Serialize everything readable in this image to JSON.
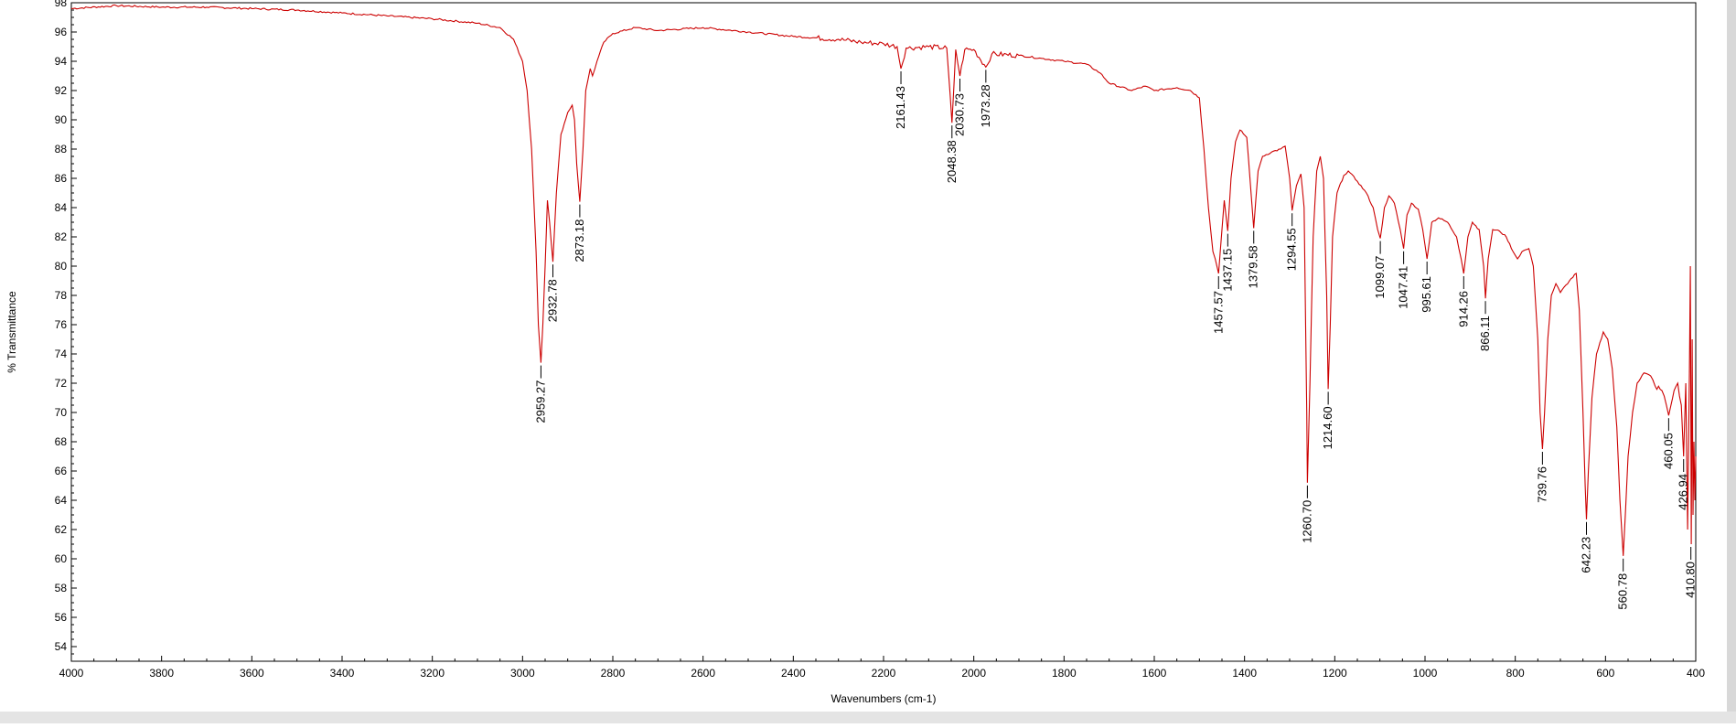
{
  "chart_data": {
    "type": "line",
    "title": "",
    "xlabel": "Wavenumbers (cm-1)",
    "ylabel": "% Transmittance",
    "xlim": [
      4000,
      400
    ],
    "ylim": [
      53,
      98
    ],
    "x_reversed": true,
    "grid": false,
    "legend": "none",
    "x_ticks": [
      4000,
      3800,
      3600,
      3400,
      3200,
      3000,
      2800,
      2600,
      2400,
      2200,
      2000,
      1800,
      1600,
      1400,
      1200,
      1000,
      800,
      600,
      400
    ],
    "y_ticks": [
      98,
      96,
      94,
      92,
      90,
      88,
      86,
      84,
      82,
      80,
      78,
      76,
      74,
      72,
      70,
      68,
      66,
      64,
      62,
      60,
      58,
      56,
      54
    ],
    "series": [
      {
        "color": "#cc0000",
        "points": [
          [
            4000,
            97.6
          ],
          [
            3900,
            97.8
          ],
          [
            3800,
            97.7
          ],
          [
            3700,
            97.7
          ],
          [
            3600,
            97.6
          ],
          [
            3500,
            97.5
          ],
          [
            3400,
            97.3
          ],
          [
            3300,
            97.1
          ],
          [
            3200,
            96.9
          ],
          [
            3100,
            96.6
          ],
          [
            3050,
            96.3
          ],
          [
            3020,
            95.5
          ],
          [
            3000,
            94.0
          ],
          [
            2990,
            92.0
          ],
          [
            2980,
            88.0
          ],
          [
            2970,
            81.0
          ],
          [
            2965,
            76.0
          ],
          [
            2959.27,
            73.4
          ],
          [
            2955,
            76.0
          ],
          [
            2950,
            80.0
          ],
          [
            2945,
            84.5
          ],
          [
            2940,
            83.0
          ],
          [
            2932.78,
            80.3
          ],
          [
            2925,
            85.0
          ],
          [
            2915,
            89.0
          ],
          [
            2900,
            90.5
          ],
          [
            2890,
            91.0
          ],
          [
            2885,
            90.0
          ],
          [
            2880,
            87.0
          ],
          [
            2873.18,
            84.4
          ],
          [
            2866,
            88.0
          ],
          [
            2860,
            92.0
          ],
          [
            2850,
            93.5
          ],
          [
            2845,
            93.0
          ],
          [
            2835,
            94.0
          ],
          [
            2820,
            95.3
          ],
          [
            2800,
            95.9
          ],
          [
            2750,
            96.3
          ],
          [
            2700,
            96.1
          ],
          [
            2600,
            96.3
          ],
          [
            2500,
            96.0
          ],
          [
            2400,
            95.7
          ],
          [
            2300,
            95.5
          ],
          [
            2250,
            95.3
          ],
          [
            2200,
            95.2
          ],
          [
            2170,
            95.0
          ],
          [
            2161.43,
            93.5
          ],
          [
            2150,
            94.9
          ],
          [
            2100,
            95.0
          ],
          [
            2060,
            94.9
          ],
          [
            2048.38,
            89.8
          ],
          [
            2040,
            94.8
          ],
          [
            2030.73,
            93.0
          ],
          [
            2020,
            94.8
          ],
          [
            2000,
            94.8
          ],
          [
            1973.28,
            93.6
          ],
          [
            1960,
            94.5
          ],
          [
            1900,
            94.4
          ],
          [
            1850,
            94.2
          ],
          [
            1800,
            94.0
          ],
          [
            1750,
            93.8
          ],
          [
            1720,
            93.2
          ],
          [
            1700,
            92.5
          ],
          [
            1650,
            92.0
          ],
          [
            1620,
            92.3
          ],
          [
            1600,
            92.0
          ],
          [
            1550,
            92.2
          ],
          [
            1520,
            92.0
          ],
          [
            1500,
            91.5
          ],
          [
            1490,
            88.0
          ],
          [
            1480,
            84.0
          ],
          [
            1470,
            81.0
          ],
          [
            1465,
            80.5
          ],
          [
            1457.57,
            79.5
          ],
          [
            1450,
            82.5
          ],
          [
            1445,
            84.5
          ],
          [
            1437.15,
            82.4
          ],
          [
            1430,
            86.0
          ],
          [
            1420,
            88.5
          ],
          [
            1410,
            89.3
          ],
          [
            1395,
            88.8
          ],
          [
            1388,
            86.0
          ],
          [
            1379.58,
            82.6
          ],
          [
            1370,
            86.5
          ],
          [
            1360,
            87.5
          ],
          [
            1340,
            87.8
          ],
          [
            1320,
            88.0
          ],
          [
            1310,
            88.2
          ],
          [
            1300,
            86.0
          ],
          [
            1294.55,
            83.8
          ],
          [
            1285,
            85.5
          ],
          [
            1275,
            86.3
          ],
          [
            1268,
            84.0
          ],
          [
            1262,
            70.0
          ],
          [
            1260.7,
            65.2
          ],
          [
            1255,
            72.0
          ],
          [
            1248,
            82.0
          ],
          [
            1240,
            86.5
          ],
          [
            1232,
            87.5
          ],
          [
            1225,
            86.0
          ],
          [
            1218,
            78.0
          ],
          [
            1214.6,
            71.6
          ],
          [
            1210,
            76.0
          ],
          [
            1205,
            82.0
          ],
          [
            1195,
            85.0
          ],
          [
            1180,
            86.2
          ],
          [
            1170,
            86.5
          ],
          [
            1150,
            85.8
          ],
          [
            1130,
            85.0
          ],
          [
            1115,
            84.0
          ],
          [
            1105,
            82.5
          ],
          [
            1099.07,
            81.9
          ],
          [
            1090,
            84.0
          ],
          [
            1080,
            84.8
          ],
          [
            1068,
            84.3
          ],
          [
            1055,
            82.5
          ],
          [
            1047.41,
            81.2
          ],
          [
            1040,
            83.5
          ],
          [
            1030,
            84.3
          ],
          [
            1015,
            83.9
          ],
          [
            1005,
            82.5
          ],
          [
            995.61,
            80.5
          ],
          [
            985,
            83.0
          ],
          [
            970,
            83.3
          ],
          [
            950,
            83.0
          ],
          [
            930,
            82.0
          ],
          [
            920,
            80.5
          ],
          [
            914.26,
            79.5
          ],
          [
            905,
            82.0
          ],
          [
            895,
            83.0
          ],
          [
            880,
            82.5
          ],
          [
            870,
            80.0
          ],
          [
            866.11,
            77.8
          ],
          [
            860,
            80.5
          ],
          [
            850,
            82.5
          ],
          [
            835,
            82.4
          ],
          [
            820,
            82.0
          ],
          [
            805,
            81.0
          ],
          [
            795,
            80.5
          ],
          [
            785,
            81.0
          ],
          [
            770,
            81.2
          ],
          [
            760,
            80.0
          ],
          [
            750,
            75.0
          ],
          [
            745,
            70.0
          ],
          [
            739.76,
            67.5
          ],
          [
            735,
            70.0
          ],
          [
            728,
            75.0
          ],
          [
            720,
            78.0
          ],
          [
            710,
            78.8
          ],
          [
            700,
            78.2
          ],
          [
            680,
            79.0
          ],
          [
            665,
            79.5
          ],
          [
            658,
            77.0
          ],
          [
            650,
            70.0
          ],
          [
            645,
            65.0
          ],
          [
            642.23,
            62.7
          ],
          [
            638,
            66.0
          ],
          [
            630,
            71.0
          ],
          [
            620,
            74.0
          ],
          [
            605,
            75.5
          ],
          [
            595,
            75.0
          ],
          [
            585,
            73.0
          ],
          [
            575,
            69.0
          ],
          [
            568,
            64.0
          ],
          [
            560.78,
            60.2
          ],
          [
            556,
            63.0
          ],
          [
            550,
            67.0
          ],
          [
            540,
            70.0
          ],
          [
            530,
            72.0
          ],
          [
            515,
            72.7
          ],
          [
            500,
            72.5
          ],
          [
            490,
            71.8
          ],
          [
            475,
            71.5
          ],
          [
            465,
            70.5
          ],
          [
            460.05,
            69.8
          ],
          [
            455,
            70.5
          ],
          [
            448,
            71.5
          ],
          [
            440,
            72.0
          ],
          [
            432,
            70.5
          ],
          [
            426.94,
            67.0
          ],
          [
            422,
            72.0
          ],
          [
            418,
            62.0
          ],
          [
            414,
            73.0
          ],
          [
            412,
            80.0
          ],
          [
            410,
            61.0
          ],
          [
            408,
            75.0
          ],
          [
            406,
            63.0
          ],
          [
            404,
            68.0
          ],
          [
            402,
            64.0
          ],
          [
            400,
            67.0
          ]
        ]
      }
    ],
    "peak_labels": [
      {
        "text": "2959.27",
        "x": 2959.27,
        "y": 73.4
      },
      {
        "text": "2932.78",
        "x": 2932.78,
        "y": 80.3
      },
      {
        "text": "2873.18",
        "x": 2873.18,
        "y": 84.4
      },
      {
        "text": "2161.43",
        "x": 2161.43,
        "y": 93.5
      },
      {
        "text": "2048.38",
        "x": 2048.38,
        "y": 89.8
      },
      {
        "text": "2030.73",
        "x": 2030.73,
        "y": 93.0
      },
      {
        "text": "1973.28",
        "x": 1973.28,
        "y": 93.6
      },
      {
        "text": "1457.57",
        "x": 1457.57,
        "y": 79.5
      },
      {
        "text": "1437.15",
        "x": 1437.15,
        "y": 82.4
      },
      {
        "text": "1379.58",
        "x": 1379.58,
        "y": 82.6
      },
      {
        "text": "1294.55",
        "x": 1294.55,
        "y": 83.8
      },
      {
        "text": "1260.70",
        "x": 1260.7,
        "y": 65.2
      },
      {
        "text": "1214.60",
        "x": 1214.6,
        "y": 71.6
      },
      {
        "text": "1099.07",
        "x": 1099.07,
        "y": 81.9
      },
      {
        "text": "1047.41",
        "x": 1047.41,
        "y": 81.2
      },
      {
        "text": "995.61",
        "x": 995.61,
        "y": 80.5
      },
      {
        "text": "914.26",
        "x": 914.26,
        "y": 79.5
      },
      {
        "text": "866.11",
        "x": 866.11,
        "y": 77.8
      },
      {
        "text": "739.76",
        "x": 739.76,
        "y": 67.5
      },
      {
        "text": "642.23",
        "x": 642.23,
        "y": 62.7
      },
      {
        "text": "560.78",
        "x": 560.78,
        "y": 60.2
      },
      {
        "text": "460.05",
        "x": 460.05,
        "y": 69.8
      },
      {
        "text": "426.94",
        "x": 426.94,
        "y": 67.0
      },
      {
        "text": "410.80",
        "x": 410.8,
        "y": 61.0
      }
    ]
  }
}
